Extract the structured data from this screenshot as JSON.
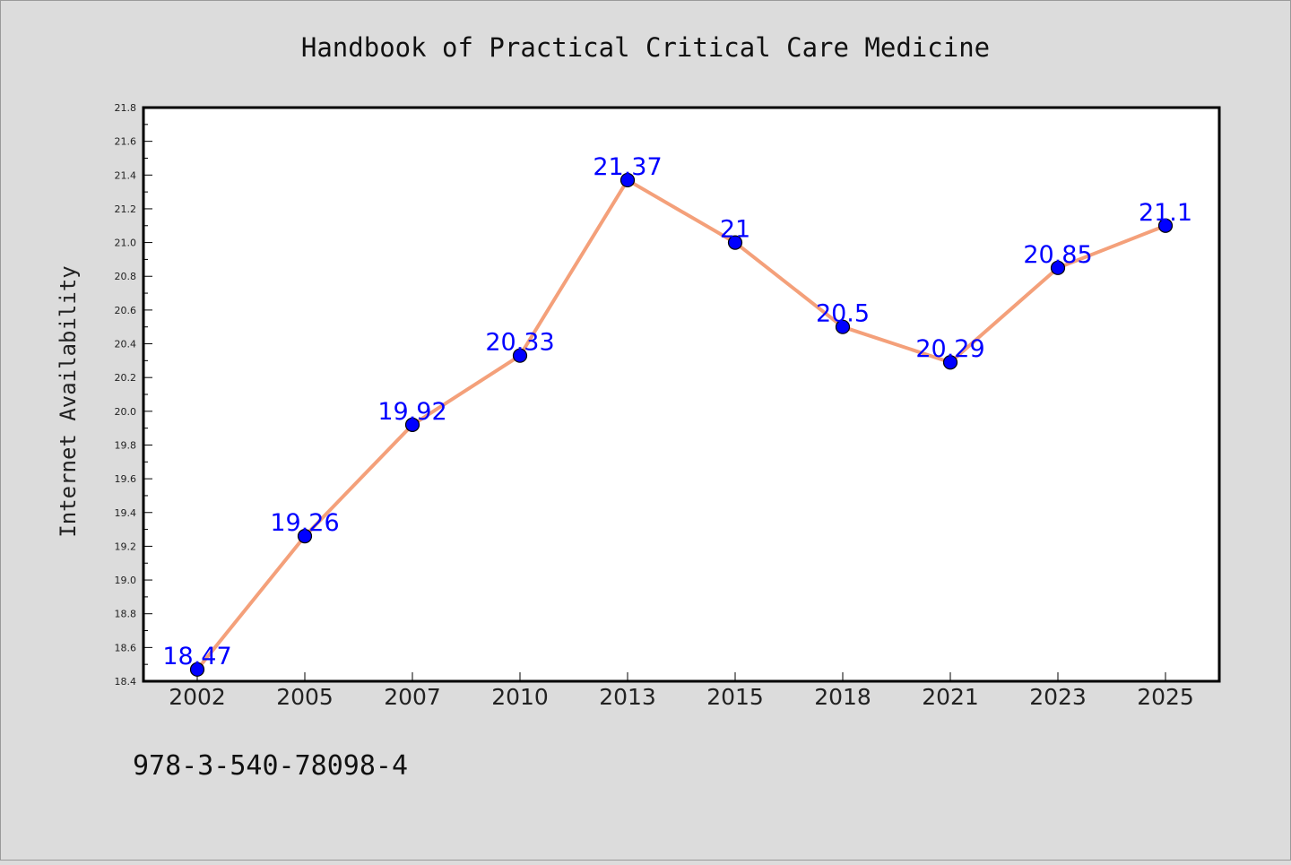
{
  "chart_data": {
    "type": "line",
    "title": "Handbook of Practical Critical Care Medicine",
    "xlabel": "",
    "ylabel": "Internet Availability",
    "categories": [
      "2002",
      "2005",
      "2007",
      "2010",
      "2013",
      "2015",
      "2018",
      "2021",
      "2023",
      "2025"
    ],
    "series": [
      {
        "values": [
          18.47,
          19.26,
          19.92,
          20.33,
          21.37,
          21,
          20.5,
          20.29,
          20.85,
          21.1
        ],
        "data_labels": [
          "18.47",
          "19.26",
          "19.92",
          "20.33",
          "21.37",
          "21",
          "20.5",
          "20.29",
          "20.85",
          "21.1"
        ]
      }
    ],
    "ylim": [
      18.4,
      21.8
    ],
    "yticks": [
      "18.4",
      "18.6",
      "18.8",
      "19.0",
      "19.2",
      "19.4",
      "19.6",
      "19.8",
      "20.0",
      "20.2",
      "20.4",
      "20.6",
      "20.8",
      "21.0",
      "21.2",
      "21.4",
      "21.6",
      "21.8"
    ],
    "grid": false,
    "legend": "none",
    "colors": {
      "line": "#f4a07a",
      "marker": "#0000ff",
      "data_label": "#0000ff",
      "plot_background": "#ffffff",
      "figure_background": "#dcdcdc"
    }
  },
  "footer_text": "978-3-540-78098-4"
}
